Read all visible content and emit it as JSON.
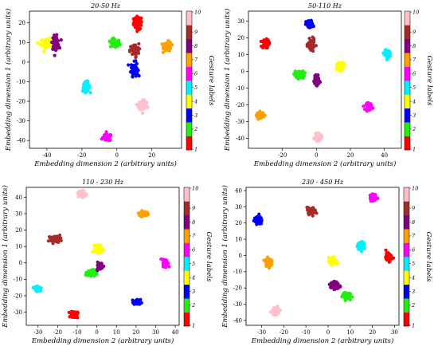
{
  "colorbar": {
    "label": "Gesture labels",
    "ticks": [
      "1",
      "2",
      "3",
      "4",
      "5",
      "6",
      "7",
      "8",
      "9",
      "10"
    ],
    "colors": {
      "1": "#ff0000",
      "2": "#22ee11",
      "3": "#0000ff",
      "4": "#ffff00",
      "5": "#00f0ff",
      "6": "#ff00ff",
      "7": "#ffa000",
      "8": "#800080",
      "9": "#a52a2a",
      "10": "#ffc0cb"
    }
  },
  "chart_data": [
    {
      "type": "scatter",
      "title": "20-50 Hz",
      "xlabel": "Embedding dimension 2 (arbitrary units)",
      "ylabel": "Embedding dimension 1 (arbitrary units)",
      "xlim": [
        -50,
        37
      ],
      "ylim": [
        -44,
        26
      ],
      "xticks": [
        -40,
        -20,
        0,
        20
      ],
      "yticks": [
        -40,
        -30,
        -20,
        -10,
        0,
        10,
        20
      ],
      "clusters": [
        {
          "label": 1,
          "x": 12,
          "y": 20,
          "rx": 2.2,
          "ry": 3.0
        },
        {
          "label": 2,
          "x": -1,
          "y": 9.5,
          "rx": 2.5,
          "ry": 2.0
        },
        {
          "label": 3,
          "x": 10,
          "y": -3.5,
          "rx": 1.8,
          "ry": 3.2
        },
        {
          "label": 4,
          "x": -40,
          "y": 9.5,
          "rx": 3.3,
          "ry": 2.2
        },
        {
          "label": 5,
          "x": -17.5,
          "y": -12.5,
          "rx": 1.9,
          "ry": 2.2
        },
        {
          "label": 6,
          "x": -5.5,
          "y": -38.5,
          "rx": 2.2,
          "ry": 1.6
        },
        {
          "label": 7,
          "x": 29,
          "y": 8,
          "rx": 2.0,
          "ry": 2.2
        },
        {
          "label": 8,
          "x": -35,
          "y": 10,
          "rx": 1.8,
          "ry": 3.0
        },
        {
          "label": 9,
          "x": 10,
          "y": 6,
          "rx": 2.3,
          "ry": 3.0
        },
        {
          "label": 10,
          "x": 15,
          "y": -22,
          "rx": 2.3,
          "ry": 2.6
        }
      ]
    },
    {
      "type": "scatter",
      "title": "50-110 Hz",
      "xlabel": "Embedding dimension 2 (arbitrary units)",
      "ylabel": "Embedding dimension 1 (arbitrary units)",
      "xlim": [
        -40,
        50
      ],
      "ylim": [
        -46,
        36
      ],
      "xticks": [
        -20,
        0,
        20,
        40
      ],
      "yticks": [
        -40,
        -30,
        -20,
        -10,
        0,
        10,
        20,
        30
      ],
      "clusters": [
        {
          "label": 1,
          "x": -30,
          "y": 16.5,
          "rx": 1.8,
          "ry": 2.3
        },
        {
          "label": 2,
          "x": -10,
          "y": -2,
          "rx": 2.7,
          "ry": 2.0
        },
        {
          "label": 3,
          "x": -4,
          "y": 28,
          "rx": 1.9,
          "ry": 2.1
        },
        {
          "label": 4,
          "x": 14,
          "y": 3,
          "rx": 1.8,
          "ry": 2.0
        },
        {
          "label": 5,
          "x": 42,
          "y": 10.5,
          "rx": 1.6,
          "ry": 2.0
        },
        {
          "label": 6,
          "x": 31,
          "y": -21,
          "rx": 1.6,
          "ry": 1.8
        },
        {
          "label": 7,
          "x": -33,
          "y": -26,
          "rx": 1.8,
          "ry": 1.6
        },
        {
          "label": 8,
          "x": 0,
          "y": -5.5,
          "rx": 1.5,
          "ry": 2.3
        },
        {
          "label": 9,
          "x": -3,
          "y": 16,
          "rx": 1.7,
          "ry": 2.8
        },
        {
          "label": 10,
          "x": 1,
          "y": -39.5,
          "rx": 1.8,
          "ry": 1.8
        }
      ]
    },
    {
      "type": "scatter",
      "title": "110 - 230 Hz",
      "xlabel": "Embedding dimension 2 (arbitrary units)",
      "ylabel": "Embedding dimension 1 (arbitrary units)",
      "xlim": [
        -36,
        42
      ],
      "ylim": [
        -38,
        46
      ],
      "xticks": [
        -30,
        -20,
        -10,
        0,
        10,
        20,
        30,
        40
      ],
      "yticks": [
        -30,
        -20,
        -10,
        0,
        10,
        20,
        30,
        40
      ],
      "clusters": [
        {
          "label": 1,
          "x": -11.5,
          "y": -31.5,
          "rx": 1.6,
          "ry": 1.9
        },
        {
          "label": 2,
          "x": -3,
          "y": -6,
          "rx": 1.9,
          "ry": 1.6
        },
        {
          "label": 3,
          "x": 20.5,
          "y": -24,
          "rx": 1.6,
          "ry": 1.5
        },
        {
          "label": 4,
          "x": 1,
          "y": 8.5,
          "rx": 1.7,
          "ry": 2.1
        },
        {
          "label": 5,
          "x": -30,
          "y": -15.5,
          "rx": 1.7,
          "ry": 1.5
        },
        {
          "label": 6,
          "x": 35,
          "y": 0,
          "rx": 1.2,
          "ry": 2.0
        },
        {
          "label": 7,
          "x": 23.5,
          "y": 30,
          "rx": 1.8,
          "ry": 1.3
        },
        {
          "label": 8,
          "x": 1.5,
          "y": -2,
          "rx": 1.4,
          "ry": 2.0
        },
        {
          "label": 9,
          "x": -21,
          "y": 14.5,
          "rx": 2.4,
          "ry": 1.6
        },
        {
          "label": 10,
          "x": -7.5,
          "y": 42,
          "rx": 1.7,
          "ry": 1.9
        }
      ]
    },
    {
      "type": "scatter",
      "title": "230 - 450 Hz",
      "xlabel": "Embedding dimension 2 (arbitrary units)",
      "ylabel": "Embedding dimension 1 (arbitrary units)",
      "xlim": [
        -37,
        32
      ],
      "ylim": [
        -43,
        42
      ],
      "xticks": [
        -30,
        -20,
        -10,
        0,
        10,
        20,
        30
      ],
      "yticks": [
        -40,
        -30,
        -20,
        -10,
        0,
        10,
        20,
        30,
        40
      ],
      "clusters": [
        {
          "label": 1,
          "x": 27.5,
          "y": -1,
          "rx": 1.3,
          "ry": 2.2
        },
        {
          "label": 2,
          "x": 8,
          "y": -24.5,
          "rx": 1.6,
          "ry": 2.0
        },
        {
          "label": 3,
          "x": -31.5,
          "y": 21.5,
          "rx": 1.6,
          "ry": 2.0
        },
        {
          "label": 4,
          "x": 2,
          "y": -3.5,
          "rx": 1.5,
          "ry": 2.0
        },
        {
          "label": 5,
          "x": 15,
          "y": 6,
          "rx": 1.5,
          "ry": 2.0
        },
        {
          "label": 6,
          "x": 20.5,
          "y": 35.5,
          "rx": 1.4,
          "ry": 2.0
        },
        {
          "label": 7,
          "x": -27,
          "y": -4,
          "rx": 1.2,
          "ry": 2.2
        },
        {
          "label": 8,
          "x": 3,
          "y": -18.5,
          "rx": 1.8,
          "ry": 2.3
        },
        {
          "label": 9,
          "x": -7.5,
          "y": 27.5,
          "rx": 1.8,
          "ry": 1.8
        },
        {
          "label": 10,
          "x": -23.5,
          "y": -34,
          "rx": 1.5,
          "ry": 1.8
        }
      ]
    }
  ]
}
